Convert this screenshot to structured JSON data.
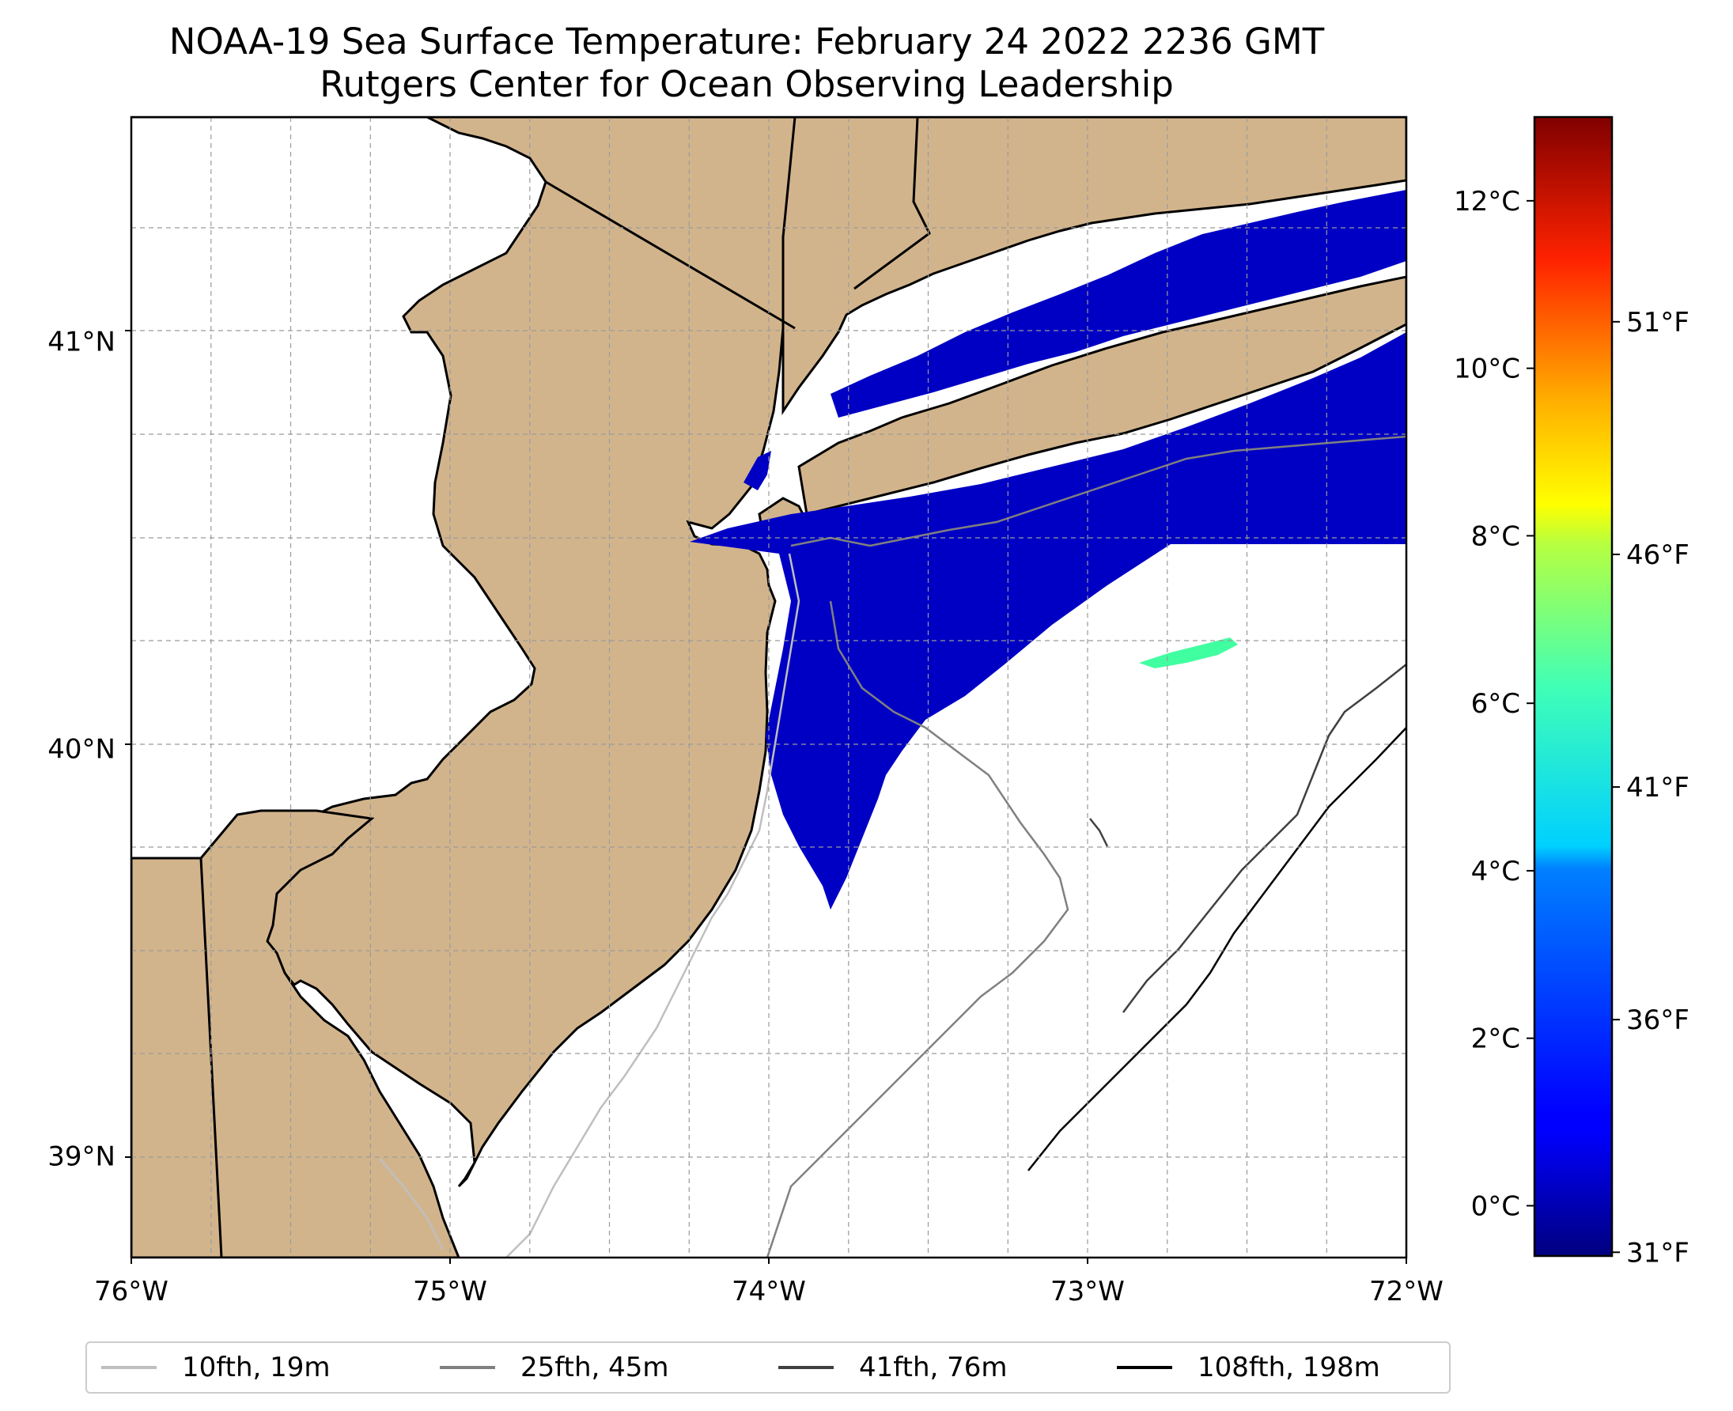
{
  "title": {
    "line1": "NOAA-19 Sea Surface Temperature: February 24 2022 2236 GMT",
    "line2": "Rutgers Center for Ocean Observing Leadership"
  },
  "map": {
    "extent": {
      "lon_min": -76.0,
      "lon_max": -72.0,
      "lat_min": 38.75,
      "lat_max": 41.55
    },
    "lon_ticks": [
      {
        "lon": -76,
        "label": "76°W"
      },
      {
        "lon": -75,
        "label": "75°W"
      },
      {
        "lon": -74,
        "label": "74°W"
      },
      {
        "lon": -73,
        "label": "73°W"
      },
      {
        "lon": -72,
        "label": "72°W"
      }
    ],
    "lat_ticks": [
      {
        "lat": 41,
        "label": "41°N"
      },
      {
        "lat": 40,
        "label": "40°N"
      },
      {
        "lat": 39,
        "label": "39°N"
      }
    ],
    "gridlines": true,
    "land_color": "#d2b48c",
    "sst_colormap": "jet",
    "sst_fill_color": "#0000c4",
    "warm_patch_color": "#40ffa0"
  },
  "colorbar": {
    "vmin_c": -0.6,
    "vmax_c": 13.0,
    "celsius_ticks": [
      {
        "value": 0,
        "label": "0°C"
      },
      {
        "value": 2,
        "label": "2°C"
      },
      {
        "value": 4,
        "label": "4°C"
      },
      {
        "value": 6,
        "label": "6°C"
      },
      {
        "value": 8,
        "label": "8°C"
      },
      {
        "value": 10,
        "label": "10°C"
      },
      {
        "value": 12,
        "label": "12°C"
      }
    ],
    "fahrenheit_ticks": [
      {
        "value": 31,
        "label": "31°F"
      },
      {
        "value": 36,
        "label": "36°F"
      },
      {
        "value": 41,
        "label": "41°F"
      },
      {
        "value": 46,
        "label": "46°F"
      },
      {
        "value": 51,
        "label": "51°F"
      }
    ]
  },
  "legend": {
    "location": "bottom-center",
    "items": [
      {
        "label": "10fth, 19m",
        "color": "#bfbfbf"
      },
      {
        "label": "25fth, 45m",
        "color": "#808080"
      },
      {
        "label": "41fth, 76m",
        "color": "#404040"
      },
      {
        "label": "108fth, 198m",
        "color": "#000000"
      }
    ]
  }
}
